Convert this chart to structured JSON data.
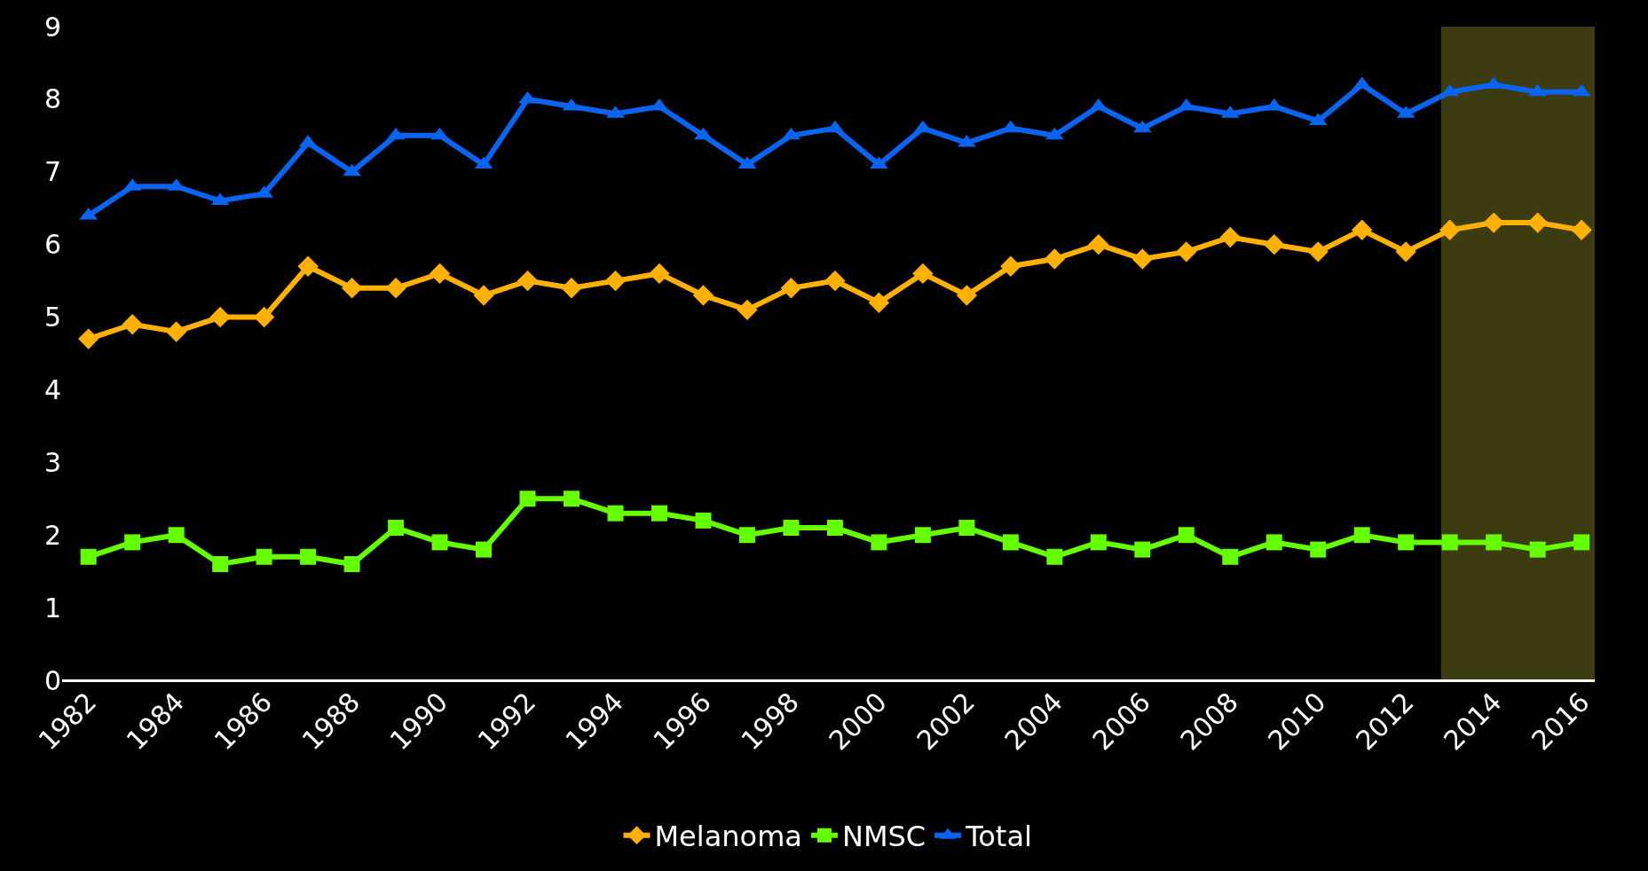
{
  "chart_data": {
    "type": "line",
    "x": [
      1982,
      1983,
      1984,
      1985,
      1986,
      1987,
      1988,
      1989,
      1990,
      1991,
      1992,
      1993,
      1994,
      1995,
      1996,
      1997,
      1998,
      1999,
      2000,
      2001,
      2002,
      2003,
      2004,
      2005,
      2006,
      2007,
      2008,
      2009,
      2010,
      2011,
      2012,
      2013,
      2014,
      2015,
      2016
    ],
    "series": [
      {
        "name": "Melanoma",
        "color": "#ffb000",
        "marker": "diamond",
        "values": [
          4.7,
          4.9,
          4.8,
          5.0,
          5.0,
          5.7,
          5.4,
          5.4,
          5.6,
          5.3,
          5.5,
          5.4,
          5.5,
          5.6,
          5.3,
          5.1,
          5.4,
          5.5,
          5.2,
          5.6,
          5.3,
          5.7,
          5.8,
          6.0,
          5.8,
          5.9,
          6.1,
          6.0,
          5.9,
          6.2,
          5.9,
          6.2,
          6.3,
          6.3,
          6.2
        ]
      },
      {
        "name": "NMSC",
        "color": "#66ff00",
        "marker": "square",
        "values": [
          1.7,
          1.9,
          2.0,
          1.6,
          1.7,
          1.7,
          1.6,
          2.1,
          1.9,
          1.8,
          2.5,
          2.5,
          2.3,
          2.3,
          2.2,
          2.0,
          2.1,
          2.1,
          1.9,
          2.0,
          2.1,
          1.9,
          1.7,
          1.9,
          1.8,
          2.0,
          1.7,
          1.9,
          1.8,
          2.0,
          1.9,
          1.9,
          1.9,
          1.8,
          1.9
        ]
      },
      {
        "name": "Total",
        "color": "#0a64f0",
        "marker": "triangle",
        "values": [
          6.4,
          6.8,
          6.8,
          6.6,
          6.7,
          7.4,
          7.0,
          7.5,
          7.5,
          7.1,
          8.0,
          7.9,
          7.8,
          7.9,
          7.5,
          7.1,
          7.5,
          7.6,
          7.1,
          7.6,
          7.4,
          7.6,
          7.5,
          7.9,
          7.6,
          7.9,
          7.8,
          7.9,
          7.7,
          8.2,
          7.8,
          8.1,
          8.2,
          8.1,
          8.1
        ]
      }
    ],
    "xlim": [
      1981.4,
      2016.3
    ],
    "xticks": [
      1982,
      1984,
      1986,
      1988,
      1990,
      1992,
      1994,
      1996,
      1998,
      2000,
      2002,
      2004,
      2006,
      2008,
      2010,
      2012,
      2014,
      2016
    ],
    "ylim": [
      0,
      9
    ],
    "yticks": [
      0,
      1,
      2,
      3,
      4,
      5,
      6,
      7,
      8,
      9
    ],
    "bands": [
      {
        "axis": "x",
        "from": 2012.8,
        "to": 2016.3,
        "color": "#3c3c10"
      }
    ],
    "grid": false,
    "legend": "bottom",
    "line_style": "solid"
  }
}
